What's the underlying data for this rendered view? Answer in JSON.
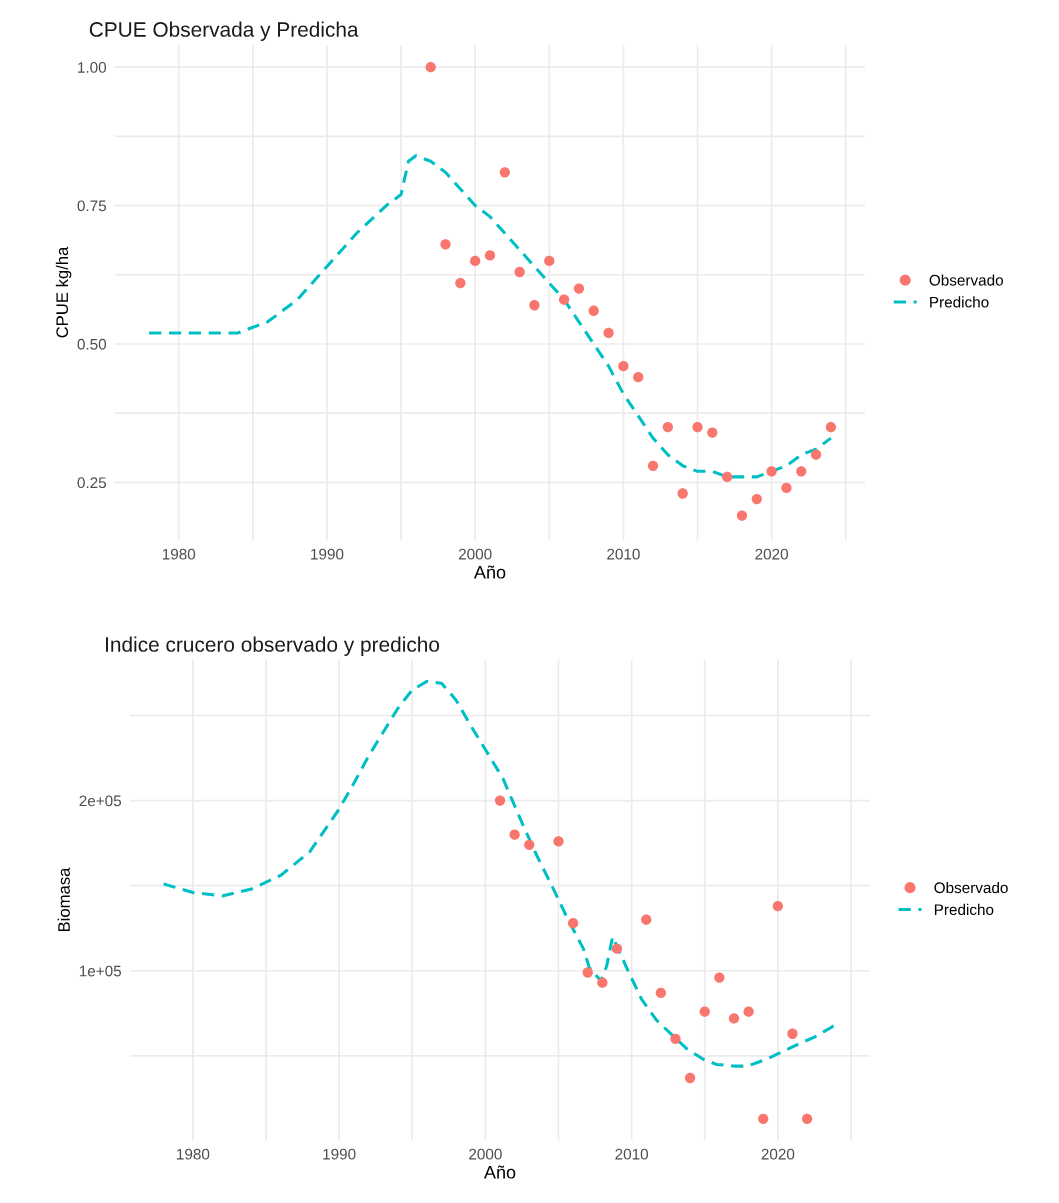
{
  "chart_data": [
    {
      "type": "scatter",
      "title": "CPUE Observada y Predicha",
      "xlabel": "Año",
      "ylabel": "CPUE kg/ha",
      "legend": "right",
      "grid": true,
      "xlim": [
        1975.7,
        2026.3
      ],
      "ylim": [
        0.146,
        1.04
      ],
      "xticks": [
        1980,
        {
          "value": 1985,
          "label": null
        },
        1990,
        {
          "value": 1995,
          "label": null
        },
        2000,
        {
          "value": 2005,
          "label": null
        },
        2010,
        {
          "value": 2015,
          "label": null
        },
        2020,
        {
          "value": 2025,
          "label": null
        }
      ],
      "yticks": [
        0.25,
        {
          "value": 0.375,
          "label": null
        },
        {
          "value": 0.5,
          "label": "0.50"
        },
        {
          "value": 0.625,
          "label": null
        },
        0.75,
        {
          "value": 0.875,
          "label": null
        },
        {
          "value": 1.0,
          "label": "1.00"
        }
      ],
      "series": [
        {
          "name": "Observado",
          "marker": "circle",
          "color": "#f8766d",
          "x": [
            1997,
            1998,
            1999,
            2000,
            2001,
            2002,
            2003,
            2004,
            2005,
            2006,
            2007,
            2008,
            2009,
            2010,
            2011,
            2012,
            2013,
            2014,
            2015,
            2016,
            2017,
            2018,
            2019,
            2020,
            2021,
            2022,
            2023,
            2024
          ],
          "values": [
            1.0,
            0.68,
            0.61,
            0.65,
            0.66,
            0.81,
            0.63,
            0.57,
            0.65,
            0.58,
            0.6,
            0.56,
            0.52,
            0.46,
            0.44,
            0.28,
            0.35,
            0.23,
            0.35,
            0.34,
            0.26,
            0.19,
            0.22,
            0.27,
            0.24,
            0.27,
            0.3,
            0.35
          ]
        },
        {
          "name": "Predicho",
          "type": "line",
          "line_style": "dashed",
          "color": "#00bfc4",
          "x": [
            1978,
            1980,
            1982,
            1984,
            1986,
            1988,
            1990,
            1992,
            1994,
            1995,
            1995.5,
            1996,
            1997,
            1998,
            1999,
            2000,
            2001,
            2002,
            2003,
            2004,
            2005,
            2006,
            2007,
            2008,
            2009,
            2010,
            2011,
            2012,
            2013,
            2014,
            2015,
            2016,
            2017,
            2018,
            2019,
            2020,
            2021,
            2022,
            2023,
            2024
          ],
          "values": [
            0.52,
            0.52,
            0.52,
            0.52,
            0.54,
            0.58,
            0.64,
            0.7,
            0.75,
            0.77,
            0.83,
            0.84,
            0.83,
            0.81,
            0.78,
            0.75,
            0.73,
            0.7,
            0.67,
            0.64,
            0.61,
            0.58,
            0.54,
            0.5,
            0.46,
            0.41,
            0.37,
            0.33,
            0.3,
            0.28,
            0.27,
            0.27,
            0.26,
            0.26,
            0.26,
            0.27,
            0.28,
            0.3,
            0.31,
            0.33
          ]
        }
      ]
    },
    {
      "type": "scatter",
      "title": "Indice crucero observado y predicho",
      "xlabel": "Año",
      "ylabel": "Biomasa",
      "legend": "right",
      "grid": true,
      "xlim": [
        1975.7,
        2026.3
      ],
      "ylim": [
        580,
        282600
      ],
      "xticks": [
        1980,
        {
          "value": 1985,
          "label": null
        },
        1990,
        {
          "value": 1995,
          "label": null
        },
        2000,
        {
          "value": 2005,
          "label": null
        },
        2010,
        {
          "value": 2015,
          "label": null
        },
        2020,
        {
          "value": 2025,
          "label": null
        }
      ],
      "yticks": [
        {
          "value": 50000,
          "label": null
        },
        {
          "value": 100000,
          "label": "1e+05"
        },
        {
          "value": 150000,
          "label": null
        },
        {
          "value": 200000,
          "label": "2e+05"
        },
        {
          "value": 250000,
          "label": null
        }
      ],
      "series": [
        {
          "name": "Observado",
          "marker": "circle",
          "color": "#f8766d",
          "x": [
            2001,
            2002,
            2003,
            2005,
            2006,
            2007,
            2008,
            2009,
            2011,
            2012,
            2013,
            2014,
            2015,
            2016,
            2017,
            2018,
            2019,
            2020,
            2021,
            2022
          ],
          "values": [
            200000,
            180000,
            174000,
            176000,
            128000,
            99000,
            93000,
            113000,
            130000,
            87000,
            60000,
            37000,
            76000,
            96000,
            72000,
            76000,
            13000,
            138000,
            63000,
            13000
          ]
        },
        {
          "name": "Predicho",
          "type": "line",
          "line_style": "dashed",
          "color": "#00bfc4",
          "x": [
            1978,
            1980,
            1982,
            1984,
            1986,
            1988,
            1990,
            1991,
            1992,
            1993,
            1994,
            1995,
            1996,
            1997,
            1998,
            1999,
            2000,
            2001.2,
            2002.5,
            2003.5,
            2004.6,
            2005.6,
            2006.7,
            2007.1,
            2007.9,
            2008.3,
            2008.7,
            2009.7,
            2010.7,
            2011.7,
            2012.8,
            2013.8,
            2014.9,
            2015.8,
            2017,
            2017.9,
            2019.2,
            2020.2,
            2021.4,
            2022.5,
            2023.7,
            2024
          ],
          "values": [
            151000,
            146000,
            144000,
            148000,
            156000,
            170000,
            195000,
            210000,
            226000,
            240000,
            254000,
            265000,
            270000,
            269000,
            259000,
            244000,
            230000,
            213000,
            187000,
            168000,
            149000,
            131000,
            113000,
            102000,
            94000,
            103000,
            120000,
            101000,
            83000,
            71000,
            62000,
            54000,
            48000,
            45000,
            44000,
            44000,
            48000,
            52000,
            57000,
            61000,
            67000,
            69000
          ]
        }
      ]
    }
  ]
}
